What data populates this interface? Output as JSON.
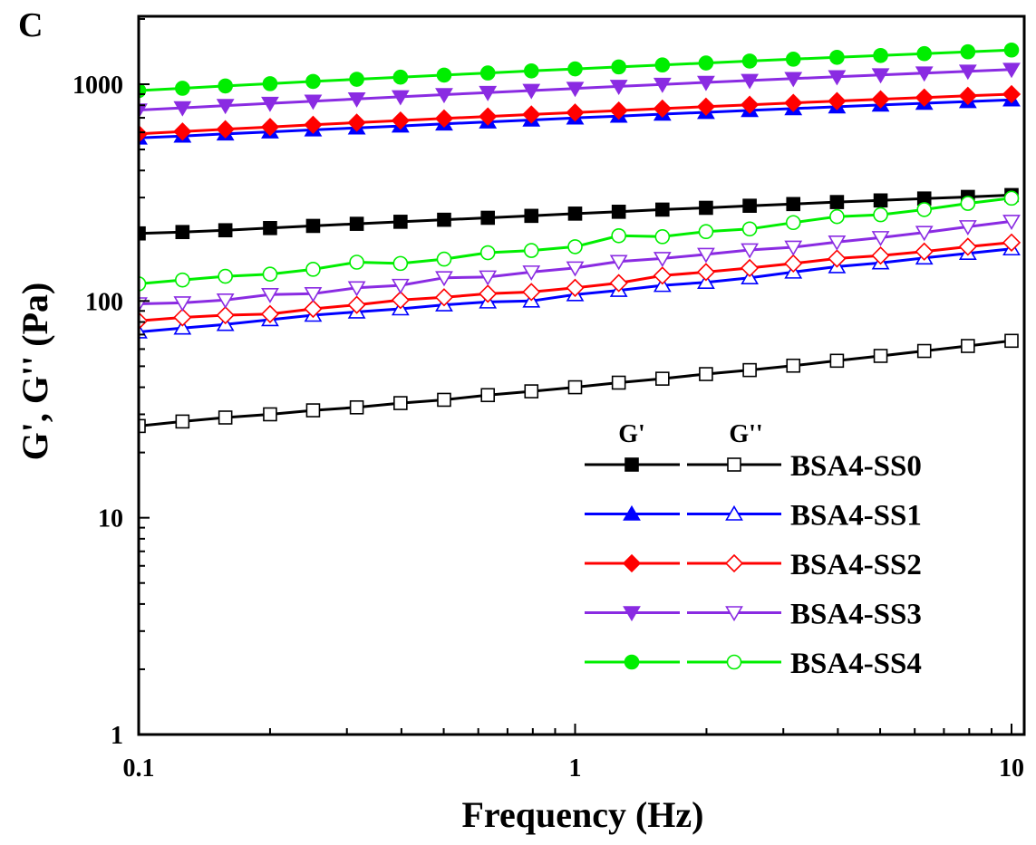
{
  "panel_label": "C",
  "chart_data": {
    "type": "line",
    "xscale": "log",
    "yscale": "log",
    "xlabel": "Frequency (Hz)",
    "ylabel": "G', G'' (Pa)",
    "xlim": [
      0.1,
      10.5
    ],
    "ylim": [
      1,
      2000
    ],
    "xticks": [
      0.1,
      1,
      10
    ],
    "xtick_labels": [
      "0.1",
      "1",
      "10"
    ],
    "yticks": [
      1,
      10,
      100,
      1000
    ],
    "ytick_labels": [
      "1",
      "10",
      "100",
      "1000"
    ],
    "legend": {
      "placement": "bottom-right",
      "header_filled": "G'",
      "header_open": "G''"
    },
    "x": [
      0.1,
      0.126,
      0.158,
      0.2,
      0.251,
      0.316,
      0.398,
      0.501,
      0.631,
      0.794,
      1.0,
      1.259,
      1.585,
      1.995,
      2.512,
      3.162,
      3.981,
      5.012,
      6.31,
      7.943,
      10.0
    ],
    "series": [
      {
        "name": "BSA4-SS0",
        "color": "#000000",
        "marker": "square",
        "G_prime": [
          205,
          208,
          212,
          217,
          222,
          227,
          232,
          237,
          242,
          247,
          253,
          258,
          264,
          269,
          275,
          280,
          286,
          291,
          297,
          302,
          308
        ],
        "G_double_prime": [
          26.5,
          27.8,
          29.0,
          30.0,
          31.3,
          32.3,
          33.8,
          35.0,
          36.8,
          38.3,
          40.0,
          42.0,
          43.8,
          46.0,
          48.0,
          50.3,
          53.0,
          55.8,
          58.8,
          62.0,
          65.5
        ]
      },
      {
        "name": "BSA4-SS1",
        "color": "#0000FF",
        "marker": "triangle-up",
        "G_prime": [
          565,
          577,
          590,
          603,
          616,
          629,
          642,
          656,
          670,
          684,
          699,
          713,
          728,
          742,
          757,
          772,
          787,
          802,
          817,
          832,
          847
        ],
        "G_double_prime": [
          72,
          75,
          78,
          82,
          86,
          89,
          92,
          96,
          99,
          100,
          107,
          112,
          118,
          122,
          128,
          136,
          144,
          150,
          158,
          166,
          174
        ]
      },
      {
        "name": "BSA4-SS2",
        "color": "#FF0000",
        "marker": "diamond",
        "G_prime": [
          590,
          605,
          620,
          635,
          650,
          665,
          680,
          695,
          710,
          725,
          740,
          756,
          772,
          788,
          804,
          820,
          836,
          852,
          868,
          884,
          900
        ],
        "G_double_prime": [
          81,
          84,
          86,
          87,
          92,
          96,
          101,
          104,
          108,
          110,
          115,
          121,
          131,
          136,
          142,
          149,
          157,
          162,
          169,
          178,
          186
        ]
      },
      {
        "name": "BSA4-SS3",
        "color": "#8A2BE2",
        "marker": "triangle-down",
        "G_prime": [
          760,
          778,
          797,
          816,
          835,
          855,
          875,
          895,
          915,
          935,
          956,
          977,
          998,
          1019,
          1040,
          1061,
          1082,
          1104,
          1126,
          1148,
          1170
        ],
        "G_double_prime": [
          97,
          98,
          101,
          107,
          108,
          115,
          118,
          128,
          129,
          136,
          142,
          152,
          157,
          164,
          172,
          177,
          187,
          196,
          207,
          220,
          233
        ]
      },
      {
        "name": "BSA4-SS4",
        "color": "#00EE00",
        "marker": "circle",
        "G_prime": [
          935,
          958,
          982,
          1006,
          1030,
          1054,
          1078,
          1102,
          1127,
          1152,
          1177,
          1202,
          1227,
          1253,
          1279,
          1305,
          1331,
          1357,
          1384,
          1411,
          1438
        ],
        "G_double_prime": [
          120,
          125,
          130,
          133,
          140,
          151,
          149,
          156,
          167,
          171,
          178,
          200,
          198,
          209,
          215,
          230,
          245,
          250,
          264,
          282,
          298
        ]
      }
    ]
  }
}
